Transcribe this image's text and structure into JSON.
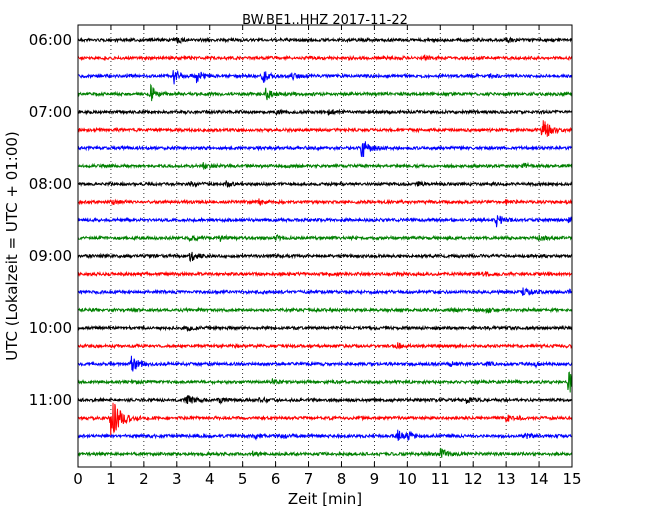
{
  "chart_data": {
    "type": "line",
    "title": "BW.BE1..HHZ 2017-11-22",
    "xlabel": "Zeit  [min]",
    "ylabel": "UTC (Lokalzeit = UTC + 01:00)",
    "xlim": [
      0,
      15
    ],
    "x_ticks": [
      "0",
      "1",
      "2",
      "3",
      "4",
      "5",
      "6",
      "7",
      "8",
      "9",
      "10",
      "11",
      "12",
      "13",
      "14",
      "15"
    ],
    "y_tick_labels": [
      "06:00",
      "07:00",
      "08:00",
      "09:00",
      "10:00",
      "11:00"
    ],
    "grid": "vertical dotted",
    "line_colors": [
      "#000000",
      "#ff0000",
      "#0000ff",
      "#008000"
    ],
    "trace_rows": [
      {
        "start": "06:00",
        "events": [
          [
            3.0,
            0.25
          ],
          [
            13.0,
            0.2
          ]
        ]
      },
      {
        "start": "06:15",
        "events": [
          [
            10.5,
            0.15
          ]
        ]
      },
      {
        "start": "06:30",
        "events": [
          [
            2.9,
            0.6
          ],
          [
            3.6,
            0.45
          ],
          [
            5.6,
            0.55
          ],
          [
            6.5,
            0.45
          ],
          [
            12.5,
            0.2
          ]
        ]
      },
      {
        "start": "06:45",
        "events": [
          [
            2.2,
            0.65
          ],
          [
            5.7,
            0.5
          ]
        ]
      },
      {
        "start": "07:00",
        "events": [
          [
            6.0,
            0.2
          ],
          [
            7.6,
            0.2
          ]
        ]
      },
      {
        "start": "07:15",
        "events": [
          [
            14.1,
            1.0
          ]
        ]
      },
      {
        "start": "07:30",
        "events": [
          [
            8.6,
            0.9
          ]
        ]
      },
      {
        "start": "07:45",
        "events": [
          [
            3.8,
            0.2
          ],
          [
            13.5,
            0.2
          ]
        ]
      },
      {
        "start": "08:00",
        "events": [
          [
            3.4,
            0.25
          ],
          [
            4.5,
            0.25
          ],
          [
            10.3,
            0.2
          ]
        ]
      },
      {
        "start": "08:15",
        "events": [
          [
            1.0,
            0.2
          ],
          [
            5.5,
            0.2
          ],
          [
            13.0,
            0.2
          ]
        ]
      },
      {
        "start": "08:30",
        "events": [
          [
            12.7,
            0.55
          ],
          [
            14.9,
            0.25
          ]
        ]
      },
      {
        "start": "08:45",
        "events": [
          [
            3.4,
            0.2
          ],
          [
            4.3,
            0.2
          ],
          [
            6.0,
            0.2
          ],
          [
            14.0,
            0.2
          ]
        ]
      },
      {
        "start": "09:00",
        "events": [
          [
            3.4,
            0.45
          ]
        ]
      },
      {
        "start": "09:15",
        "events": [
          [
            12.3,
            0.2
          ]
        ]
      },
      {
        "start": "09:30",
        "events": [
          [
            13.5,
            0.55
          ],
          [
            14.9,
            0.2
          ]
        ]
      },
      {
        "start": "09:45",
        "events": [
          [
            11.3,
            0.2
          ],
          [
            12.4,
            0.2
          ]
        ]
      },
      {
        "start": "10:00",
        "events": [
          [
            3.3,
            0.2
          ]
        ]
      },
      {
        "start": "10:15",
        "events": [
          [
            9.7,
            0.2
          ]
        ]
      },
      {
        "start": "10:30",
        "events": [
          [
            1.6,
            0.7
          ],
          [
            11.3,
            0.2
          ],
          [
            12.4,
            0.2
          ],
          [
            13.9,
            0.2
          ]
        ]
      },
      {
        "start": "10:45",
        "events": [
          [
            5.9,
            0.2
          ],
          [
            14.9,
            1.2
          ]
        ]
      },
      {
        "start": "11:00",
        "events": [
          [
            3.3,
            0.5
          ],
          [
            4.3,
            0.2
          ],
          [
            5.5,
            0.2
          ],
          [
            11.8,
            0.2
          ]
        ]
      },
      {
        "start": "11:15",
        "events": [
          [
            1.0,
            1.6
          ],
          [
            13.0,
            0.3
          ]
        ]
      },
      {
        "start": "11:30",
        "events": [
          [
            5.4,
            0.2
          ],
          [
            6.2,
            0.2
          ],
          [
            9.7,
            0.5
          ],
          [
            10.0,
            0.3
          ],
          [
            13.6,
            0.2
          ]
        ]
      },
      {
        "start": "11:45",
        "events": [
          [
            5.3,
            0.2
          ],
          [
            11.0,
            0.5
          ]
        ]
      }
    ]
  }
}
